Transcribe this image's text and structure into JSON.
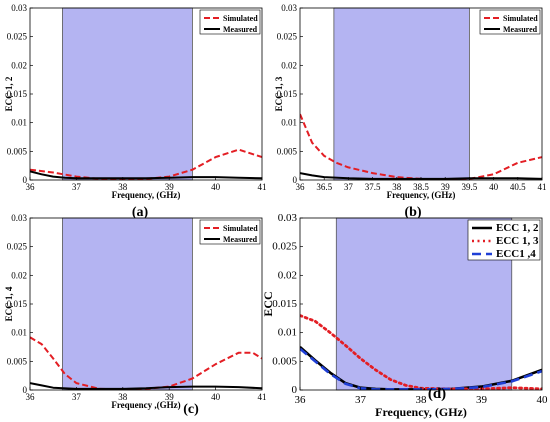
{
  "chart_data": [
    {
      "type": "line",
      "panel_label": "(a)",
      "xlabel": "Frequency, (GHz)",
      "ylabel": "ECC 1, 2",
      "xlim": [
        36,
        41
      ],
      "ylim": [
        0,
        0.03
      ],
      "xticks": [
        "36",
        "37",
        "38",
        "39",
        "40",
        "41"
      ],
      "yticks": [
        "0",
        "0.005",
        "0.01",
        "0.015",
        "0.02",
        "0.025",
        "0.03"
      ],
      "shaded_band": [
        36.7,
        39.5
      ],
      "legend_position": "top-right",
      "series": [
        {
          "name": "Simulated",
          "color": "#e31e24",
          "dash": "dashed",
          "x": [
            36,
            36.5,
            37,
            37.5,
            38,
            38.5,
            39,
            39.5,
            40,
            40.5,
            41
          ],
          "y": [
            0.0018,
            0.0013,
            0.0006,
            0.0002,
            0.0001,
            0.0002,
            0.0006,
            0.0018,
            0.004,
            0.0053,
            0.004
          ]
        },
        {
          "name": "Measured",
          "color": "#000000",
          "dash": "solid",
          "x": [
            36,
            36.25,
            36.5,
            36.75,
            37,
            37.5,
            38,
            38.5,
            39,
            39.5,
            40,
            40.5,
            41
          ],
          "y": [
            0.0015,
            0.001,
            0.0006,
            0.0004,
            0.0003,
            0.0003,
            0.0003,
            0.0003,
            0.0004,
            0.0005,
            0.0005,
            0.0004,
            0.0003
          ]
        }
      ]
    },
    {
      "type": "line",
      "panel_label": "(b)",
      "xlabel": "Frequency, (GHz)",
      "ylabel": "ECC 1, 3",
      "xlim": [
        36,
        41
      ],
      "ylim": [
        0,
        0.03
      ],
      "xticks": [
        "36",
        "36.5",
        "37",
        "37.5",
        "38",
        "38.5",
        "39",
        "39.5",
        "40",
        "40.5",
        "41"
      ],
      "yticks": [
        "0",
        "0.005",
        "0.01",
        "0.015",
        "0.02",
        "0.025",
        "0.03"
      ],
      "shaded_band": [
        36.7,
        39.5
      ],
      "legend_position": "top-right",
      "series": [
        {
          "name": "Simulated",
          "color": "#e31e24",
          "dash": "dashed",
          "x": [
            36,
            36.25,
            36.5,
            36.75,
            37,
            37.5,
            38,
            38.5,
            39,
            39.5,
            40,
            40.5,
            41
          ],
          "y": [
            0.0115,
            0.0065,
            0.0042,
            0.003,
            0.0022,
            0.0012,
            0.0005,
            0.0002,
            0.0001,
            0.0002,
            0.001,
            0.003,
            0.004
          ]
        },
        {
          "name": "Measured",
          "color": "#000000",
          "dash": "solid",
          "x": [
            36,
            36.25,
            36.5,
            37,
            37.5,
            38,
            38.5,
            39,
            39.5,
            40,
            40.5,
            41
          ],
          "y": [
            0.0012,
            0.0008,
            0.0005,
            0.0003,
            0.0002,
            0.0002,
            0.0002,
            0.0002,
            0.0003,
            0.0003,
            0.0003,
            0.0002
          ]
        }
      ]
    },
    {
      "type": "line",
      "panel_label": "(c)",
      "xlabel": "Frequency ,(GHz)",
      "ylabel": "ECC 1, 4",
      "xlim": [
        36,
        41
      ],
      "ylim": [
        0,
        0.03
      ],
      "xticks": [
        "36",
        "37",
        "38",
        "39",
        "40",
        "41"
      ],
      "yticks": [
        "0",
        "0.005",
        "0.01",
        "0.015",
        "0.02",
        "0.025",
        "0.03"
      ],
      "shaded_band": [
        36.7,
        39.5
      ],
      "legend_position": "top-right",
      "series": [
        {
          "name": "Simulated",
          "color": "#e31e24",
          "dash": "dashed",
          "x": [
            36,
            36.25,
            36.5,
            36.75,
            37,
            37.5,
            38,
            38.5,
            39,
            39.5,
            40,
            40.5,
            40.8,
            41
          ],
          "y": [
            0.0092,
            0.008,
            0.0055,
            0.0028,
            0.0012,
            0.0002,
            0.0001,
            0.0002,
            0.0006,
            0.002,
            0.0045,
            0.0065,
            0.0065,
            0.0055
          ]
        },
        {
          "name": "Measured",
          "color": "#000000",
          "dash": "solid",
          "x": [
            36,
            36.25,
            36.5,
            37,
            37.5,
            38,
            38.5,
            39,
            39.5,
            40,
            40.5,
            41
          ],
          "y": [
            0.0012,
            0.0008,
            0.0004,
            0.0002,
            0.0002,
            0.0002,
            0.0003,
            0.0005,
            0.0006,
            0.0006,
            0.0005,
            0.0003
          ]
        }
      ]
    },
    {
      "type": "line",
      "panel_label": "(d)",
      "xlabel": "Frequency, (GHz)",
      "ylabel": "ECC",
      "xlim": [
        36,
        40
      ],
      "ylim": [
        0,
        0.03
      ],
      "xticks": [
        "36",
        "37",
        "38",
        "39",
        "40"
      ],
      "yticks": [
        "0",
        "0.005",
        "0.01",
        "0.015",
        "0.02",
        "0.025",
        "0.03"
      ],
      "shaded_band": [
        36.6,
        39.5
      ],
      "legend_position": "top-right",
      "series": [
        {
          "name": "ECC 1, 2",
          "color": "#000000",
          "dash": "solid",
          "x": [
            36,
            36.25,
            36.5,
            36.75,
            37,
            37.25,
            37.5,
            38,
            38.5,
            39,
            39.5,
            40
          ],
          "y": [
            0.0075,
            0.0052,
            0.003,
            0.0012,
            0.0004,
            0.0002,
            0.0001,
            0.0001,
            0.0002,
            0.0006,
            0.0016,
            0.0035
          ]
        },
        {
          "name": "ECC 1, 3",
          "color": "#e31e24",
          "dash": "dotted",
          "x": [
            36,
            36.25,
            36.5,
            36.75,
            37,
            37.25,
            37.5,
            37.75,
            38,
            38.5,
            39,
            39.5,
            40
          ],
          "y": [
            0.013,
            0.012,
            0.01,
            0.0078,
            0.0055,
            0.0035,
            0.0018,
            0.0008,
            0.0003,
            0.0002,
            0.0002,
            0.0004,
            0.0002
          ]
        },
        {
          "name": "ECC1 ,4",
          "color": "#1f3fd6",
          "dash": "dashed",
          "x": [
            36,
            36.25,
            36.5,
            36.75,
            37,
            37.25,
            37.5,
            38,
            38.5,
            39,
            39.5,
            40
          ],
          "y": [
            0.0072,
            0.005,
            0.0028,
            0.0011,
            0.0003,
            0.0001,
            0.0001,
            0.0001,
            0.0002,
            0.0005,
            0.0015,
            0.0033
          ]
        }
      ]
    }
  ]
}
